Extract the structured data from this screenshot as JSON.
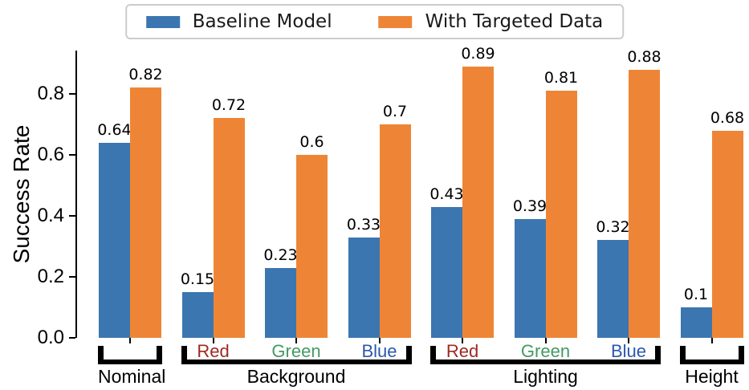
{
  "chart_data": {
    "type": "bar",
    "title": "",
    "ylabel": "Success Rate",
    "xlabel": "",
    "ylim": [
      0,
      0.945
    ],
    "yticks": [
      0,
      0.2,
      0.4,
      0.6,
      0.8
    ],
    "ytick_labels": [
      "0.0",
      "0.2",
      "0.4",
      "0.6",
      "0.8"
    ],
    "grid": false,
    "legend_position": "upper center",
    "background_color": "#ffffff",
    "axis_color": "#000000",
    "series": [
      {
        "name": "Baseline Model",
        "color": "#3b76b0",
        "values": [
          0.64,
          0.15,
          0.23,
          0.33,
          0.43,
          0.39,
          0.32,
          0.1
        ],
        "value_labels": [
          "0.64",
          "0.15",
          "0.23",
          "0.33",
          "0.43",
          "0.39",
          "0.32",
          "0.1"
        ]
      },
      {
        "name": "With Targeted Data",
        "color": "#ee8536",
        "values": [
          0.82,
          0.72,
          0.6,
          0.7,
          0.89,
          0.81,
          0.88,
          0.68
        ],
        "value_labels": [
          "0.82",
          "0.72",
          "0.6",
          "0.7",
          "0.89",
          "0.81",
          "0.88",
          "0.68"
        ]
      }
    ],
    "group_sublabels": [
      {
        "text": "",
        "color": "#000000"
      },
      {
        "text": "Red",
        "color": "#9c2a21"
      },
      {
        "text": "Green",
        "color": "#449a63"
      },
      {
        "text": "Blue",
        "color": "#2d57ae"
      },
      {
        "text": "Red",
        "color": "#9c2a21"
      },
      {
        "text": "Green",
        "color": "#449a63"
      },
      {
        "text": "Blue",
        "color": "#2d57ae"
      },
      {
        "text": "",
        "color": "#000000"
      }
    ],
    "category_brackets": [
      {
        "label": "Nominal",
        "start": 0,
        "end": 0
      },
      {
        "label": "Background",
        "start": 1,
        "end": 3
      },
      {
        "label": "Lighting",
        "start": 4,
        "end": 6
      },
      {
        "label": "Height",
        "start": 7,
        "end": 7
      }
    ]
  }
}
